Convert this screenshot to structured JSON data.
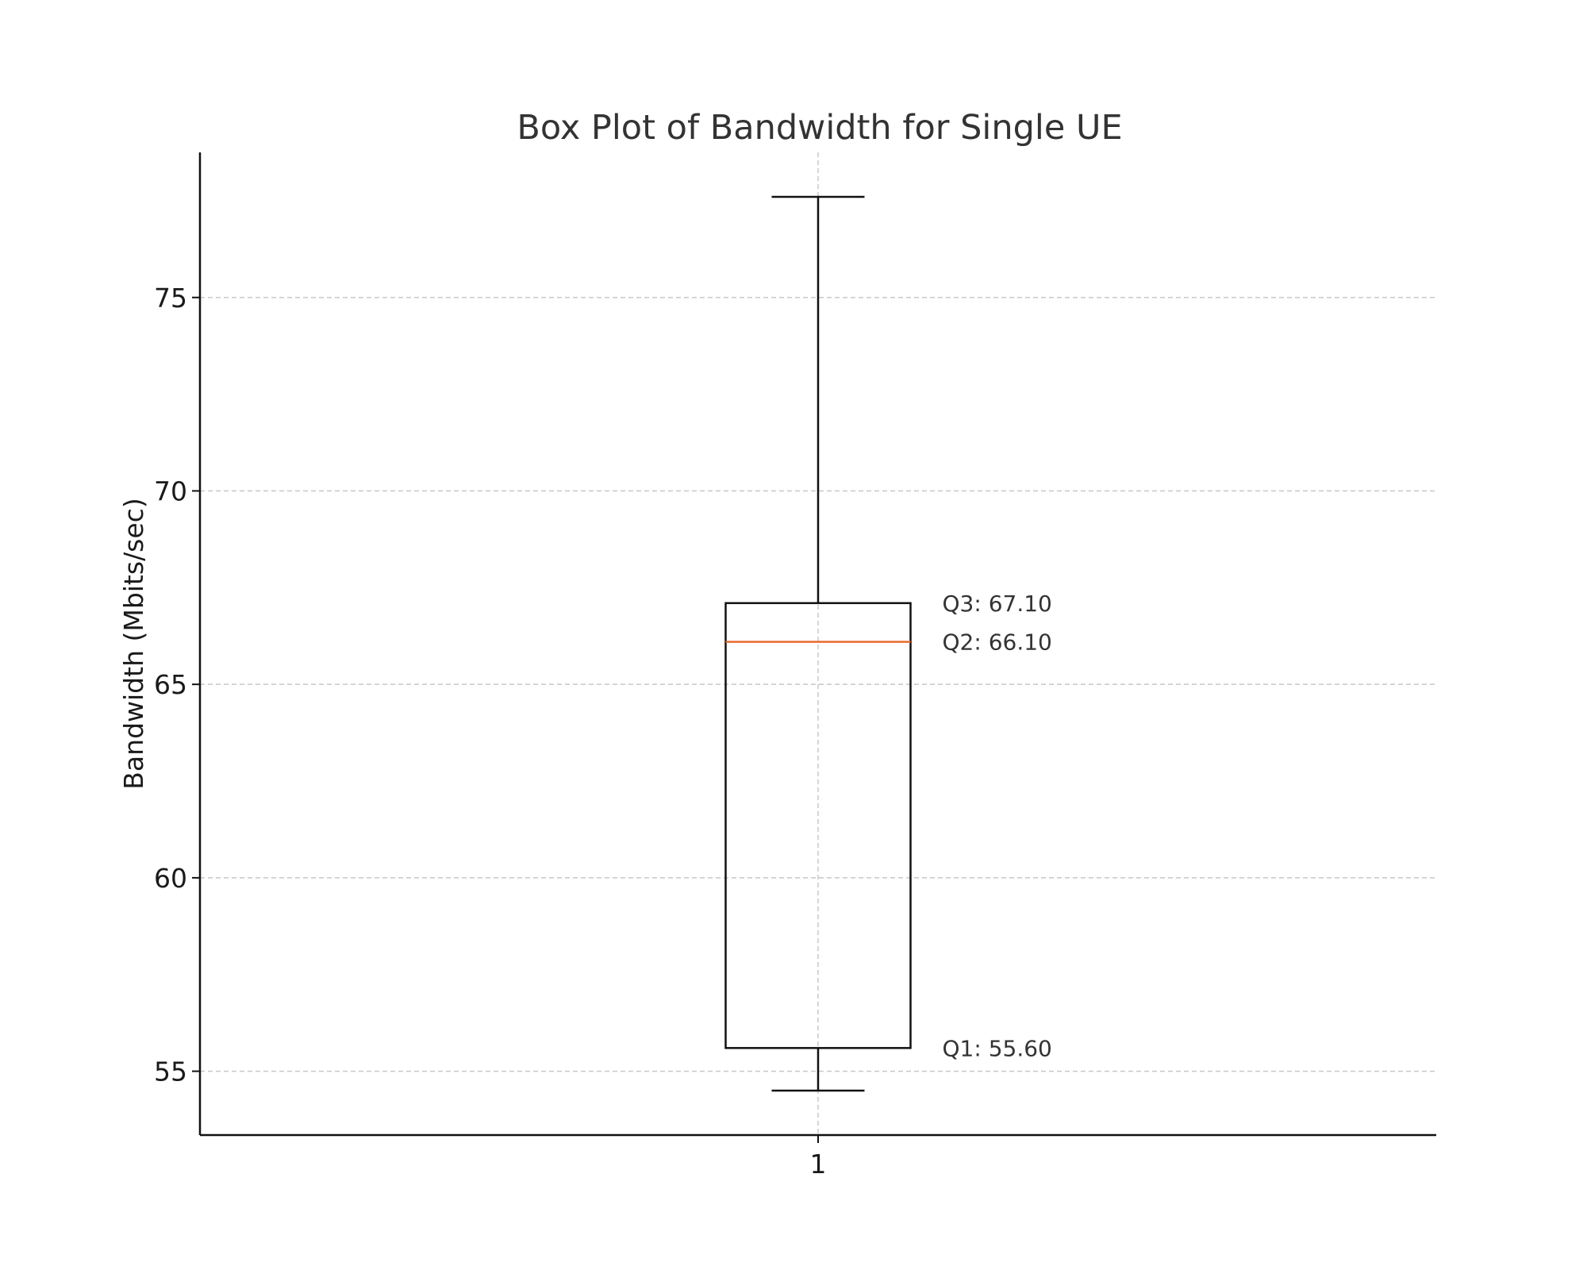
{
  "chart_data": {
    "type": "box",
    "title": "Box Plot of Bandwidth for Single UE",
    "xlabel": "",
    "ylabel": "Bandwidth (Mbits/sec)",
    "categories": [
      "1"
    ],
    "ylim": [
      53.35,
      78.75
    ],
    "yticks": [
      55,
      60,
      65,
      70,
      75
    ],
    "grid": true,
    "boxes": [
      {
        "category": "1",
        "whisker_low": 54.5,
        "q1": 55.6,
        "median": 66.1,
        "q3": 67.1,
        "whisker_high": 77.6
      }
    ],
    "annotations": [
      {
        "label": "Q3: 67.10",
        "value": 67.1
      },
      {
        "label": "Q2: 66.10",
        "value": 66.1
      },
      {
        "label": "Q1: 55.60",
        "value": 55.6
      }
    ],
    "colors": {
      "median": "#e8692e",
      "box": "#111111",
      "grid": "#c8c8c8"
    }
  }
}
